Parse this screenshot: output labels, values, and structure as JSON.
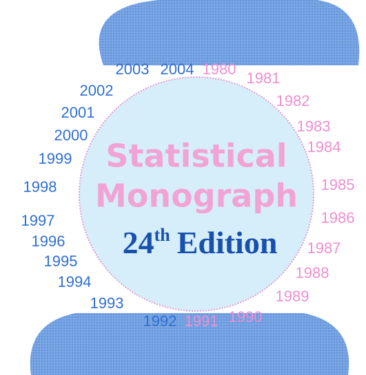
{
  "title": [
    "Statistical",
    "Monograph"
  ],
  "edition": {
    "number": "24",
    "suffix": "th",
    "word": "Edition"
  },
  "years_blue": [
    "1992",
    "1993",
    "1994",
    "1995",
    "1996",
    "1997",
    "1998",
    "1999",
    "2000",
    "2001",
    "2002",
    "2003",
    "2004"
  ],
  "years_pink": [
    "1980",
    "1981",
    "1982",
    "1983",
    "1984",
    "1985",
    "1986",
    "1987",
    "1988",
    "1989",
    "1990",
    "1991"
  ]
}
